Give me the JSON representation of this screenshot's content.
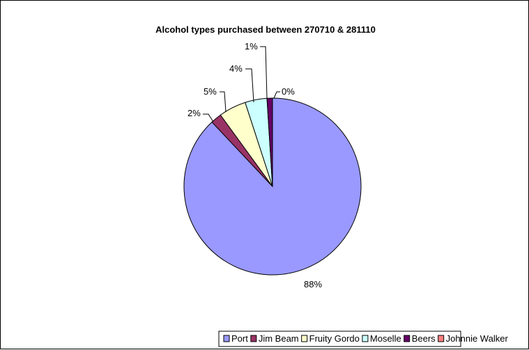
{
  "chart_data": {
    "type": "pie",
    "title": "Alcohol types purchased between 270710 & 281110",
    "categories": [
      "Port",
      "Jim Beam",
      "Fruity Gordo",
      "Moselle",
      "Beers",
      "Johnnie Walker"
    ],
    "values": [
      88,
      2,
      5,
      4,
      1,
      0
    ],
    "data_labels": [
      "88%",
      "2%",
      "5%",
      "4%",
      "1%",
      "0%"
    ],
    "colors": [
      "#9999ff",
      "#993366",
      "#ffffcc",
      "#ccffff",
      "#660066",
      "#ff8080"
    ],
    "legend_position": "bottom"
  }
}
